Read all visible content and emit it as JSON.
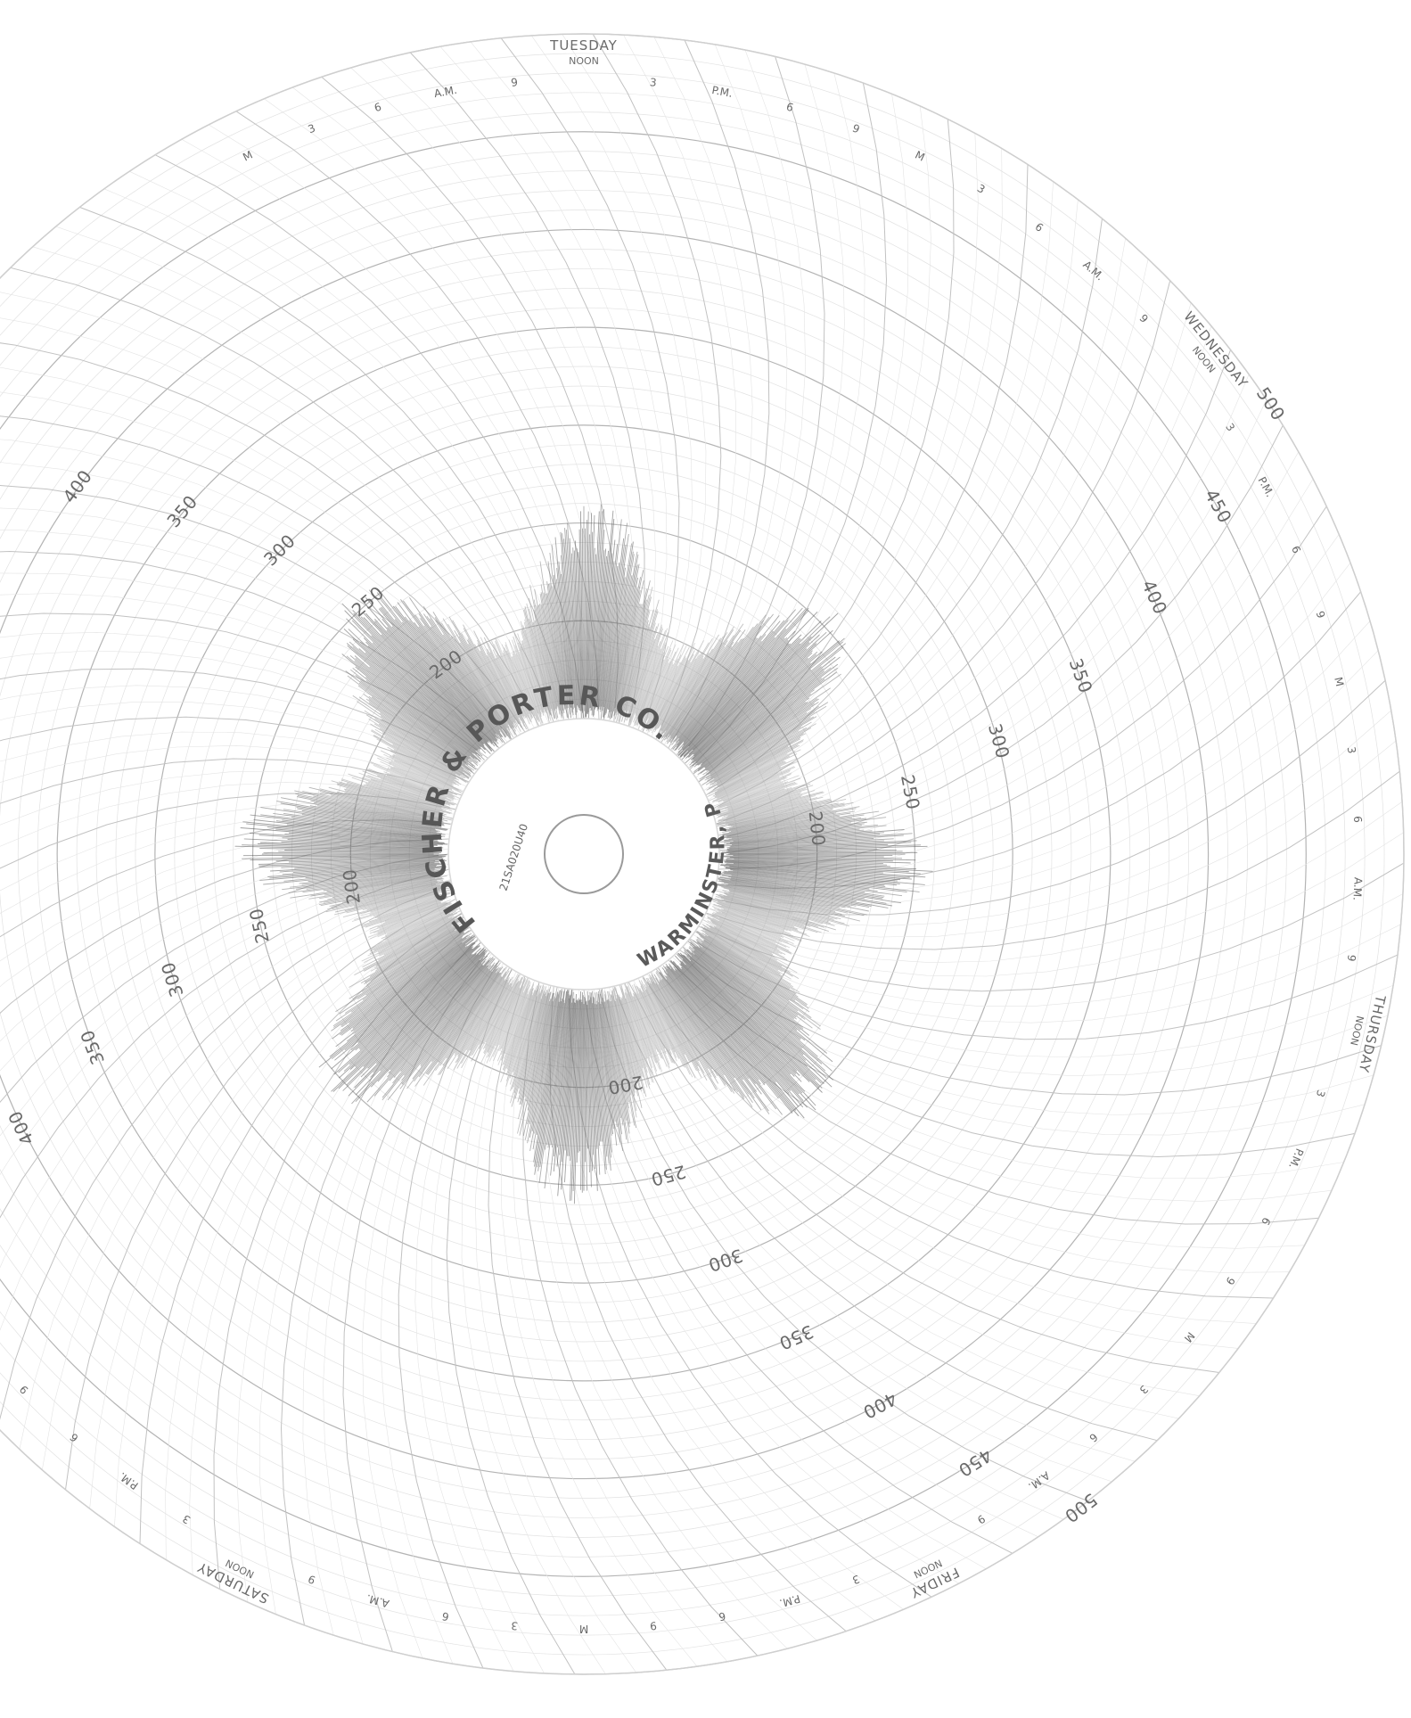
{
  "chart_data": {
    "type": "circular recorder chart",
    "manufacturer_label": {
      "company": "FISCHER & PORTER CO.",
      "location": "WARMINSTER, PA.",
      "part_number": "21SA020U40"
    },
    "radial_scale": {
      "ticks": [
        200,
        250,
        300,
        350,
        400,
        450,
        500
      ],
      "range": [
        150,
        500
      ]
    },
    "time_ring": {
      "days": [
        {
          "day": "TUESDAY",
          "noon_label": "NOON"
        },
        {
          "day": "WEDNESDAY",
          "noon_label": "NOON"
        },
        {
          "day": "THURSDAY",
          "noon_label": "NOON"
        },
        {
          "day": "FRIDAY",
          "noon_label": "NOON"
        },
        {
          "day": "SATURDAY",
          "noon_label": "NOON"
        }
      ],
      "hour_marks": [
        "M",
        "3",
        "6",
        "A.M.",
        "9",
        "NOON",
        "3",
        "P.M.",
        "6",
        "9"
      ]
    },
    "trace": {
      "description_free": true,
      "band_min": 150,
      "band_max": 260
    }
  }
}
